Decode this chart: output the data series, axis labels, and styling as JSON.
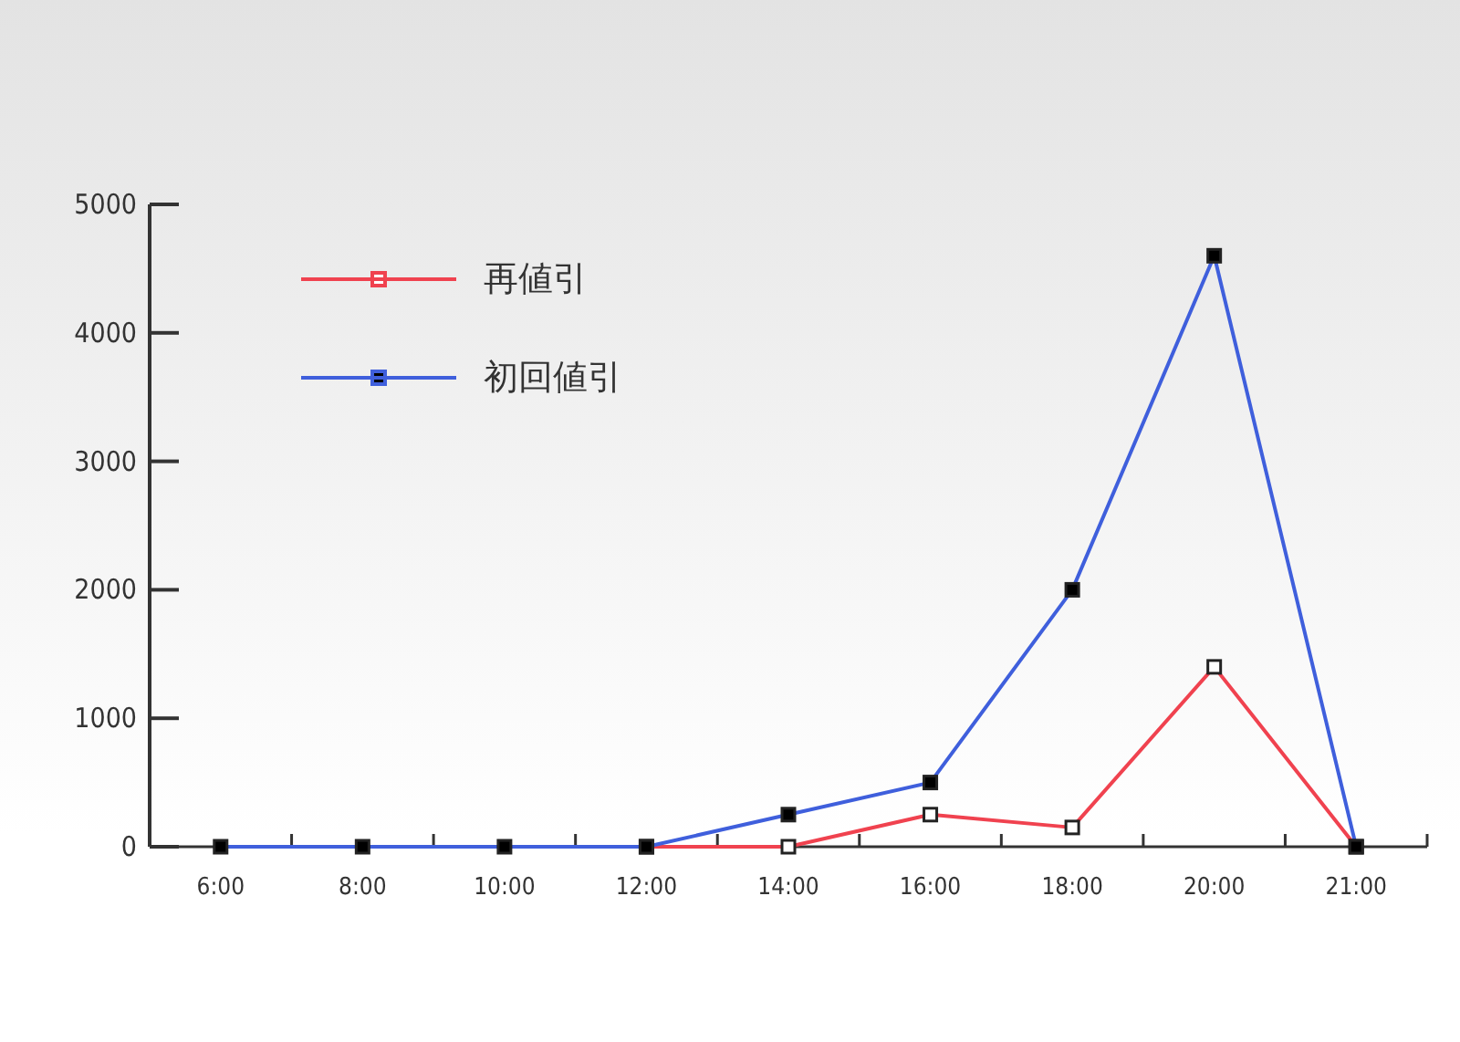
{
  "chart_data": {
    "type": "line",
    "categories": [
      "6:00",
      "8:00",
      "10:00",
      "12:00",
      "14:00",
      "16:00",
      "18:00",
      "20:00",
      "21:00"
    ],
    "series": [
      {
        "name": "再値引",
        "color": "#f0424f",
        "values": [
          null,
          null,
          null,
          0,
          0,
          250,
          150,
          1400,
          0
        ]
      },
      {
        "name": "初回値引",
        "color": "#3f5fdc",
        "values": [
          0,
          0,
          0,
          0,
          250,
          500,
          2000,
          4600,
          0
        ]
      }
    ],
    "ylim": [
      0,
      5000
    ],
    "yticks": [
      0,
      1000,
      2000,
      3000,
      4000,
      5000
    ],
    "legend": "top left",
    "marker": "square",
    "line_style": "solid"
  }
}
